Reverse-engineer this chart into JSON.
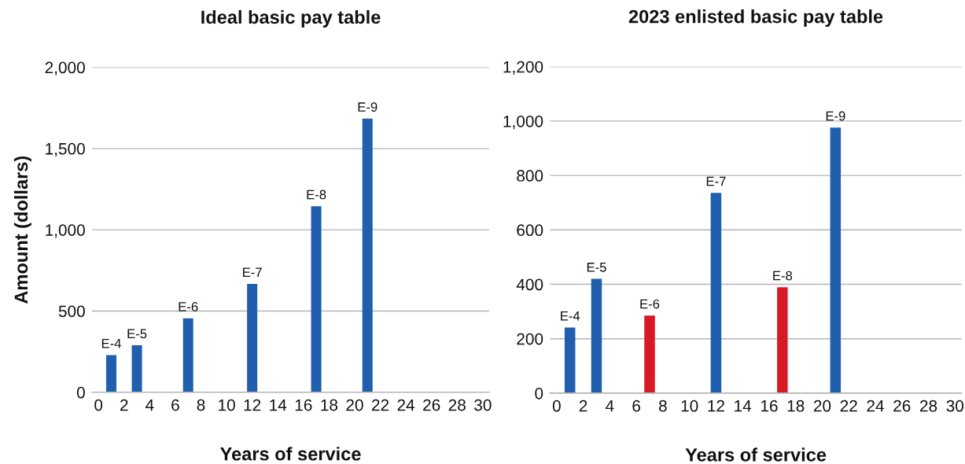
{
  "chart_data": [
    {
      "type": "bar",
      "title": "Ideal basic pay table",
      "xlabel": "Years of service",
      "ylabel": "Amount (dollars)",
      "x": [
        1,
        3,
        7,
        12,
        17,
        21
      ],
      "values": [
        229,
        289,
        455,
        667,
        1145,
        1684
      ],
      "color": "#1f5fad",
      "xlim": [
        -0.5,
        30.5
      ],
      "xticks": [
        0,
        2,
        4,
        6,
        8,
        10,
        12,
        14,
        16,
        18,
        20,
        22,
        24,
        26,
        28,
        30
      ],
      "ylim": [
        0,
        2000
      ],
      "yticks": [
        0,
        500,
        {
          "value": 1000,
          "label": "1,000"
        },
        {
          "value": 1500,
          "label": "1,500"
        },
        {
          "value": 2000,
          "label": "2,000"
        }
      ],
      "grid": "y",
      "annotations": [
        {
          "text": "E-4",
          "x": 1,
          "y": 229
        },
        {
          "text": "E-5",
          "x": 3,
          "y": 289
        },
        {
          "text": "E-6",
          "x": 7,
          "y": 455
        },
        {
          "text": "E-7",
          "x": 12,
          "y": 667
        },
        {
          "text": "E-8",
          "x": 17,
          "y": 1145
        },
        {
          "text": "E-9",
          "x": 21,
          "y": 1684
        }
      ]
    },
    {
      "type": "bar",
      "title": "2023 enlisted basic pay table",
      "xlabel": "Years of service",
      "x": [
        1,
        3,
        7,
        12,
        17,
        21
      ],
      "values": [
        241,
        420,
        285,
        736,
        389,
        976
      ],
      "colors": [
        "#1f5fad",
        "#1f5fad",
        "#d71a26",
        "#1f5fad",
        "#d71a26",
        "#1f5fad"
      ],
      "xlim": [
        -0.5,
        30.5
      ],
      "xticks": [
        0,
        2,
        4,
        6,
        8,
        10,
        12,
        14,
        16,
        18,
        20,
        22,
        24,
        26,
        28,
        30
      ],
      "ylim": [
        0,
        1200
      ],
      "yticks": [
        0,
        200,
        400,
        600,
        800,
        {
          "value": 1000,
          "label": "1,000"
        },
        {
          "value": 1200,
          "label": "1,200"
        }
      ],
      "grid": "y",
      "annotations": [
        {
          "text": "E-4",
          "x": 1,
          "y": 241
        },
        {
          "text": "E-5",
          "x": 3,
          "y": 420
        },
        {
          "text": "E-6",
          "x": 7,
          "y": 285
        },
        {
          "text": "E-7",
          "x": 12,
          "y": 736
        },
        {
          "text": "E-8",
          "x": 17,
          "y": 389
        },
        {
          "text": "E-9",
          "x": 21,
          "y": 976
        }
      ]
    }
  ]
}
